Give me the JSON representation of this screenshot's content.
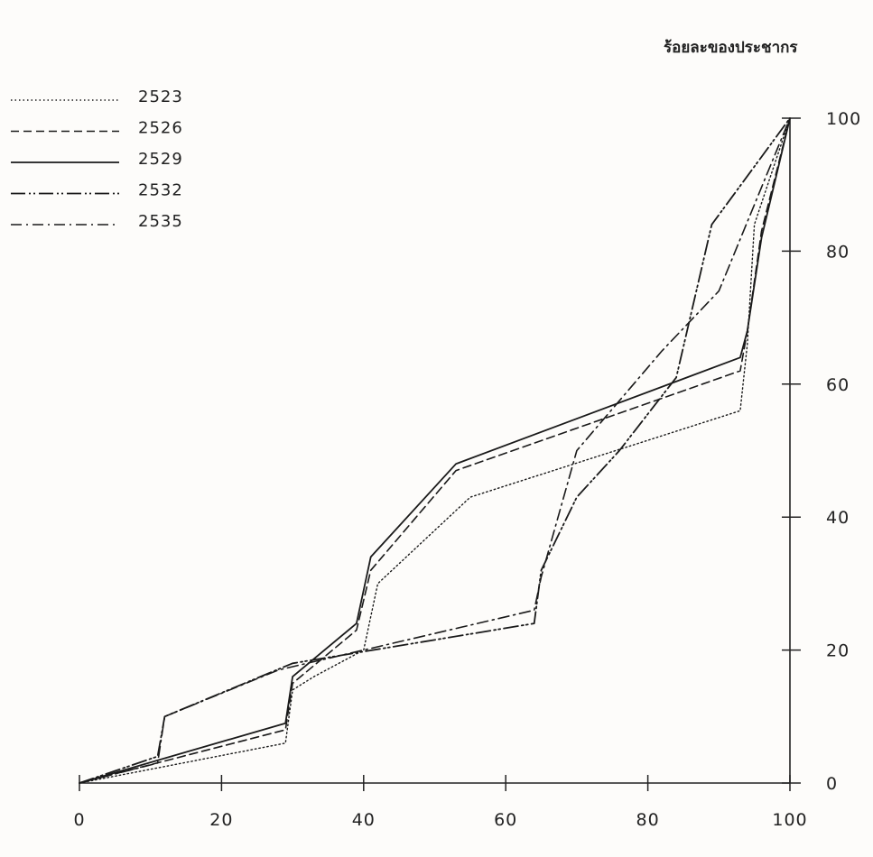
{
  "chart_data": {
    "type": "line",
    "ylabel": "ร้อยละของประชากร",
    "xlabel": "",
    "x_ticks": [
      "0",
      "20",
      "40",
      "60",
      "80",
      "100"
    ],
    "y_ticks": [
      "0",
      "20",
      "40",
      "60",
      "80",
      "100"
    ],
    "xlim": [
      0,
      100
    ],
    "ylim": [
      0,
      100
    ],
    "legend_position": "top-left",
    "series": [
      {
        "name": "2523",
        "dash": "dotted",
        "points": [
          [
            0,
            0
          ],
          [
            29,
            6
          ],
          [
            30,
            14
          ],
          [
            33,
            16
          ],
          [
            40,
            20
          ],
          [
            42,
            30
          ],
          [
            55,
            43
          ],
          [
            93,
            56
          ],
          [
            94,
            66
          ],
          [
            95,
            84
          ],
          [
            100,
            100
          ]
        ]
      },
      {
        "name": "2526",
        "dash": "dashed",
        "points": [
          [
            0,
            0
          ],
          [
            29,
            8
          ],
          [
            30,
            15
          ],
          [
            39,
            23
          ],
          [
            41,
            32
          ],
          [
            53,
            47
          ],
          [
            93,
            62
          ],
          [
            94,
            68
          ],
          [
            96,
            83
          ],
          [
            100,
            100
          ]
        ]
      },
      {
        "name": "2529",
        "dash": "solid",
        "points": [
          [
            0,
            0
          ],
          [
            29,
            9
          ],
          [
            30,
            16
          ],
          [
            39,
            24
          ],
          [
            41,
            34
          ],
          [
            53,
            48
          ],
          [
            93,
            64
          ],
          [
            94,
            68
          ],
          [
            96,
            82
          ],
          [
            100,
            100
          ]
        ]
      },
      {
        "name": "2532",
        "dash": "long-dash-double-dot",
        "points": [
          [
            0,
            0
          ],
          [
            11,
            4
          ],
          [
            12,
            10
          ],
          [
            30,
            18
          ],
          [
            64,
            24
          ],
          [
            65,
            32
          ],
          [
            70,
            43
          ],
          [
            76,
            50
          ],
          [
            84,
            61
          ],
          [
            89,
            84
          ],
          [
            100,
            100
          ]
        ]
      },
      {
        "name": "2535",
        "dash": "dash-dot",
        "points": [
          [
            0,
            0
          ],
          [
            11,
            3
          ],
          [
            12,
            10
          ],
          [
            28,
            17
          ],
          [
            64,
            26
          ],
          [
            65,
            31
          ],
          [
            70,
            50
          ],
          [
            82,
            65
          ],
          [
            90,
            74
          ],
          [
            100,
            100
          ]
        ]
      }
    ]
  }
}
